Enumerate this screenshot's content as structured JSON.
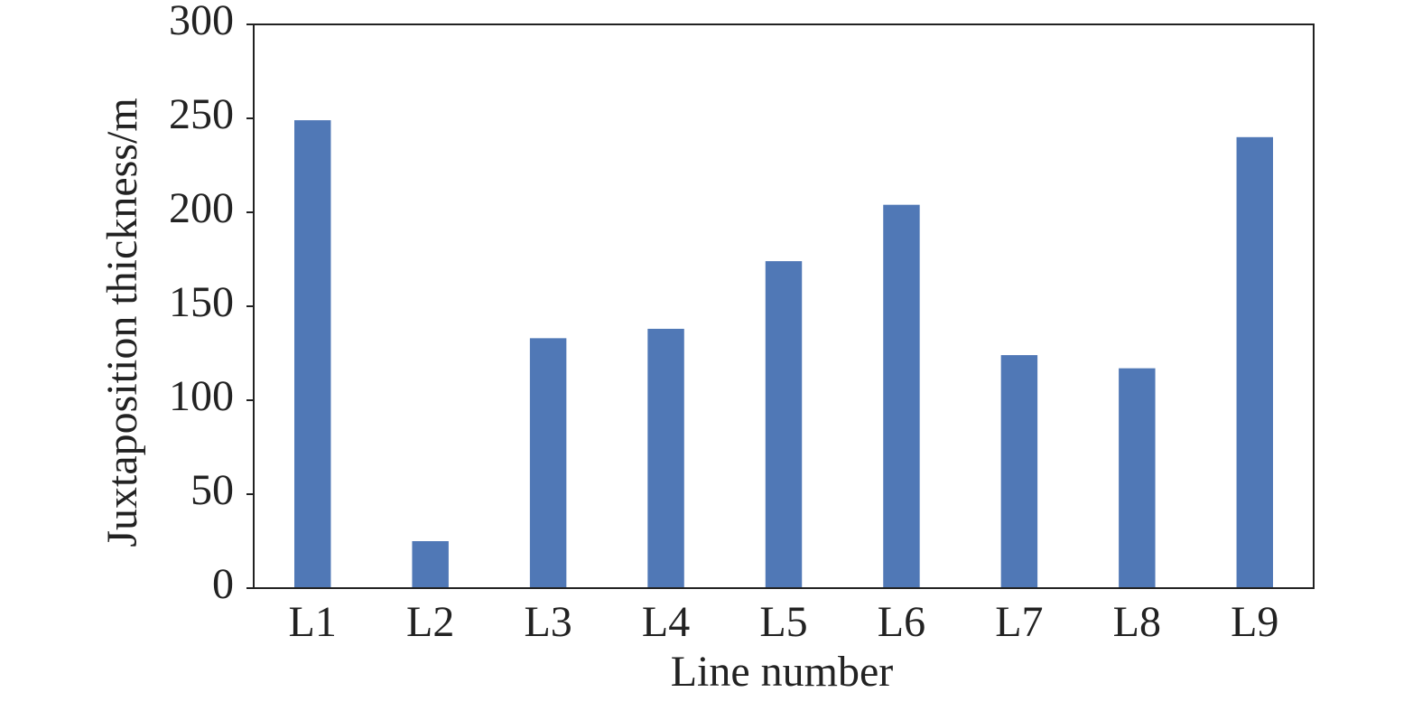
{
  "chart_data": {
    "type": "bar",
    "xlabel": "Line number",
    "ylabel": "Juxtaposition thickness/m",
    "categories": [
      "L1",
      "L2",
      "L3",
      "L4",
      "L5",
      "L6",
      "L7",
      "L8",
      "L9"
    ],
    "values": [
      249,
      25,
      133,
      138,
      174,
      204,
      124,
      117,
      240
    ],
    "color": "#5078b6",
    "ylim": [
      0,
      300
    ],
    "yticks": [
      0,
      50,
      100,
      150,
      200,
      250,
      300
    ],
    "grid": false
  }
}
